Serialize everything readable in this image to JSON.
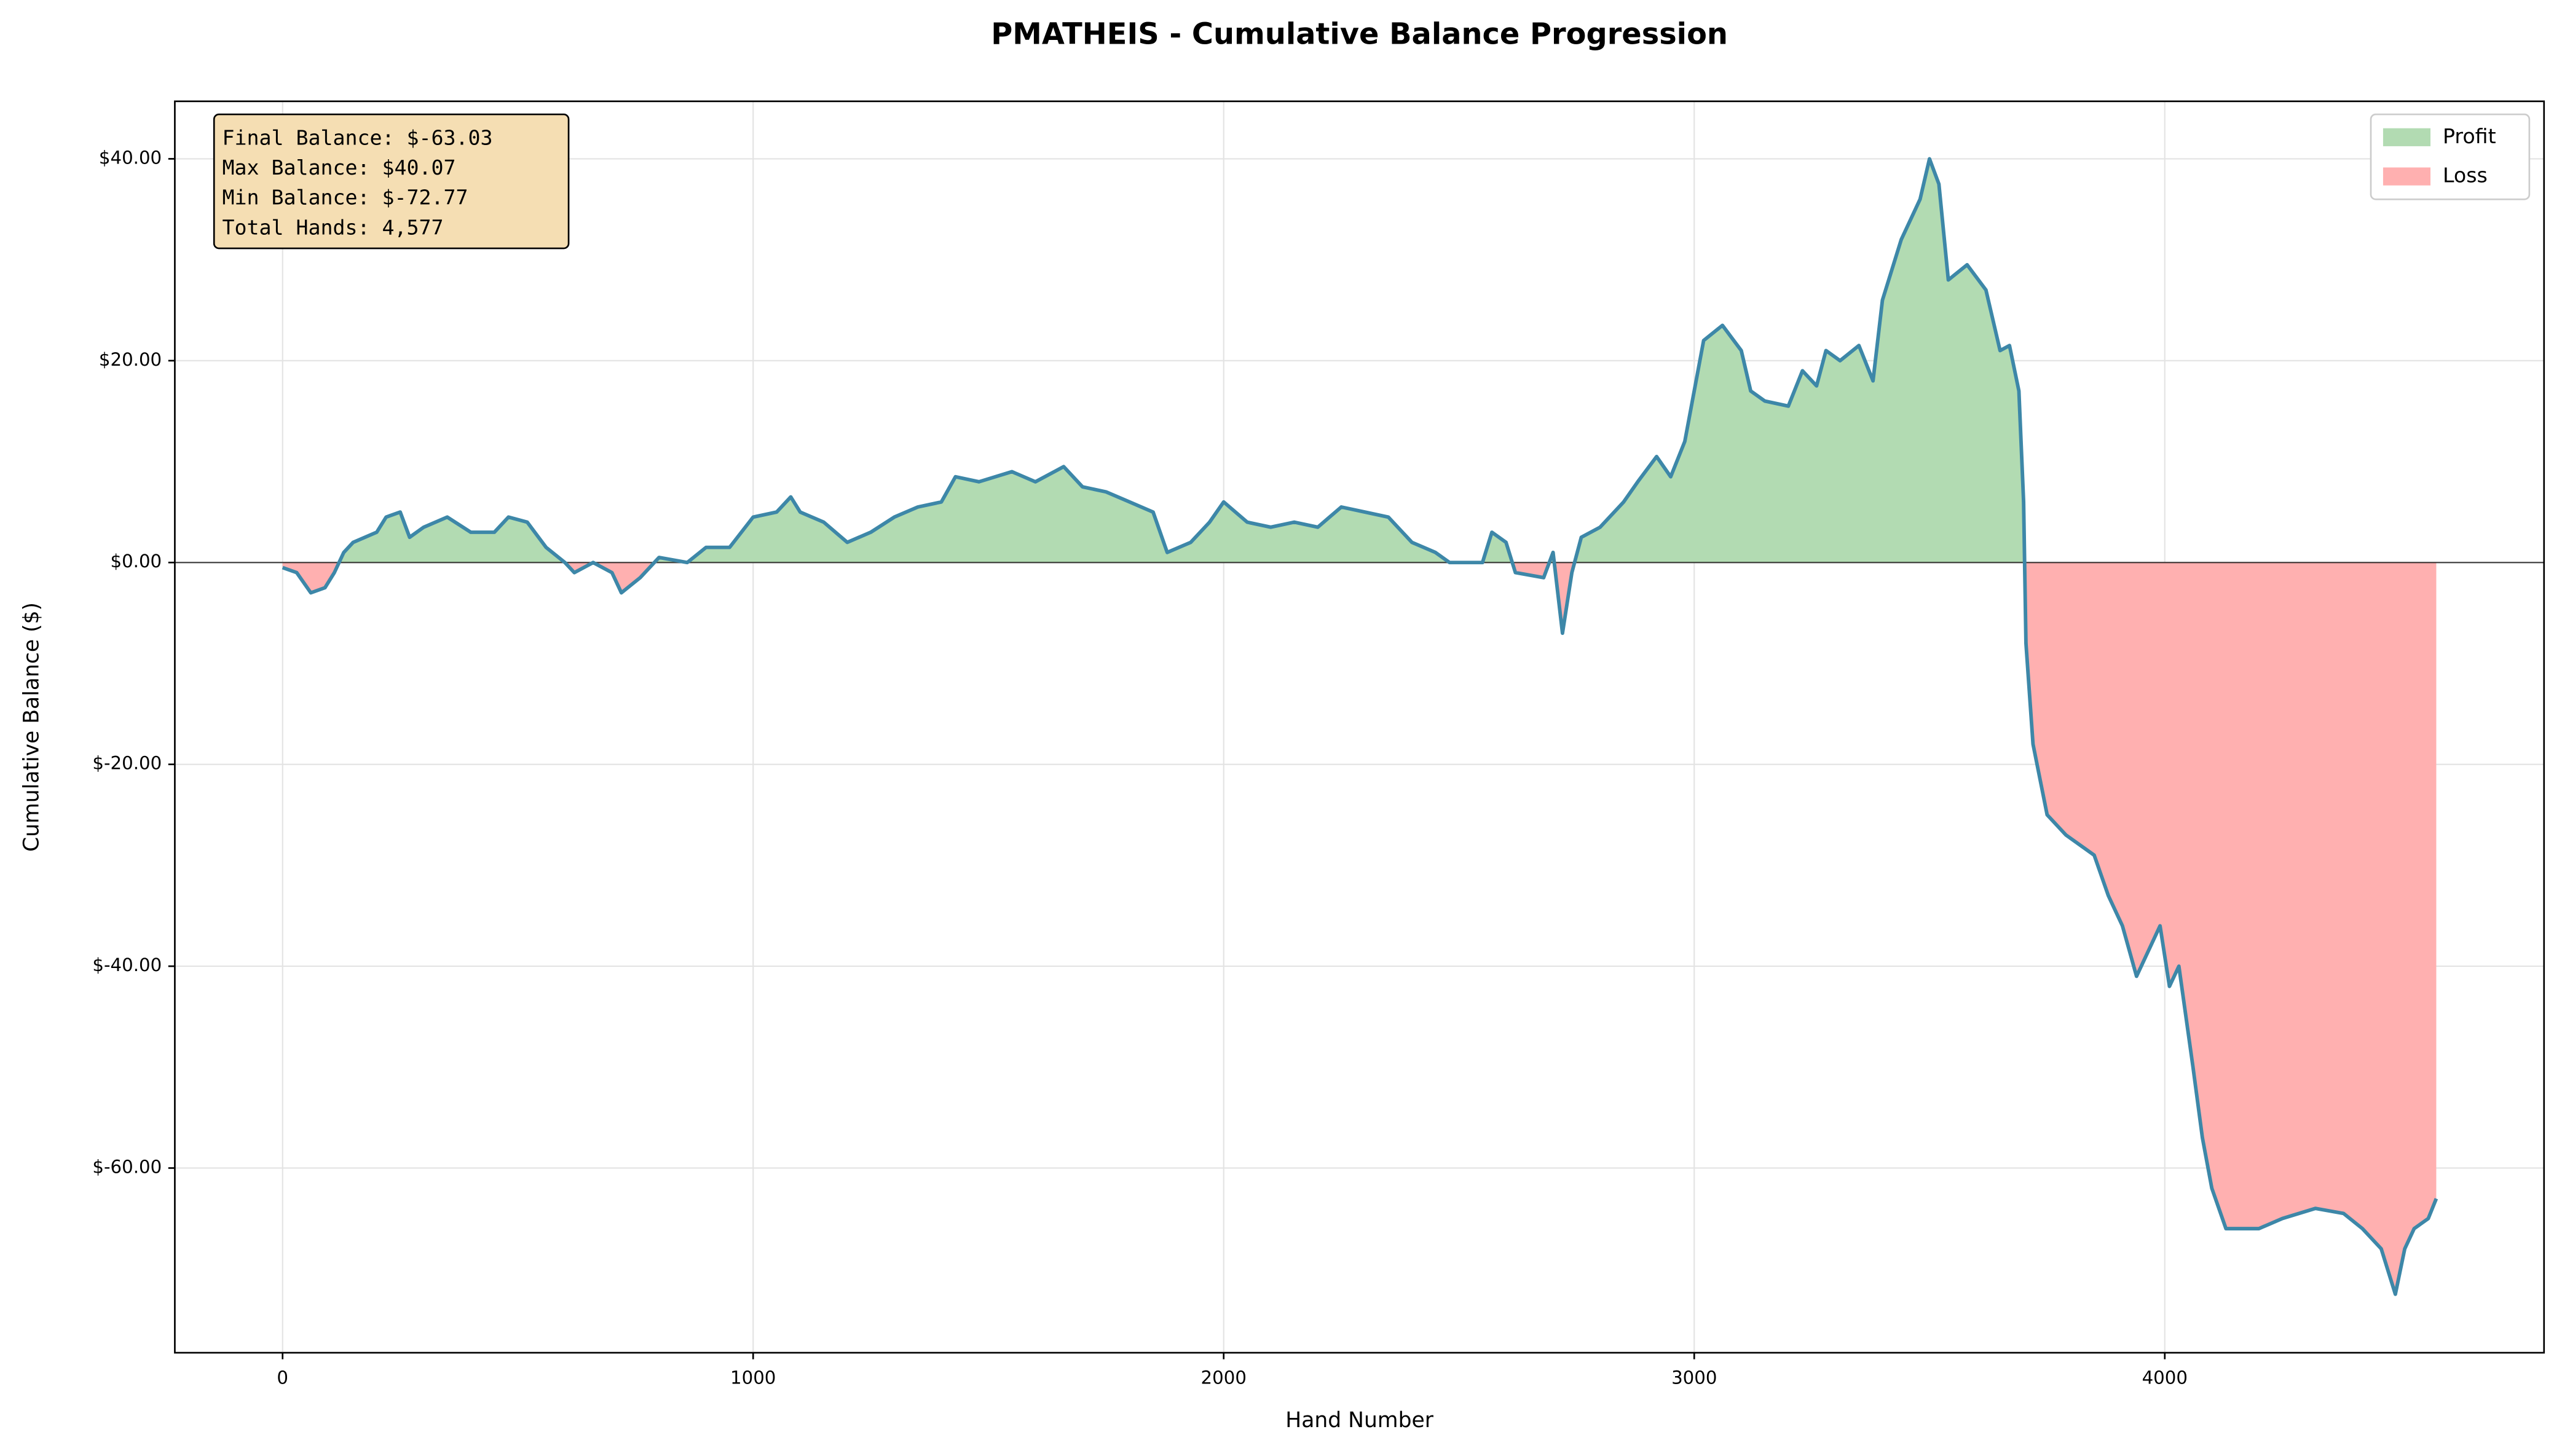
{
  "chart_data": {
    "type": "line",
    "title": "PMATHEIS - Cumulative Balance Progression",
    "xlabel": "Hand Number",
    "ylabel": "Cumulative Balance ($)",
    "annotation": [
      "Final Balance: $-63.03",
      "Max Balance: $40.07",
      "Min Balance: $-72.77",
      "Total Hands: 4,577"
    ],
    "line_color": "#3d87a8",
    "fills": [
      {
        "name": "Profit",
        "color": "#b2dbb2"
      },
      {
        "name": "Loss",
        "color": "#ffb0b0"
      }
    ],
    "legend": "upper right",
    "grid": true,
    "xlim": [
      -229,
      4806
    ],
    "ylim": [
      -78.3,
      45.7
    ],
    "xticks": [
      0,
      1000,
      2000,
      3000,
      4000
    ],
    "yticks": [
      {
        "value": 40,
        "label": "$40.00"
      },
      {
        "value": 20,
        "label": "$20.00"
      },
      {
        "value": 0,
        "label": "$0.00"
      },
      {
        "value": -20,
        "label": "$-20.00"
      },
      {
        "value": -40,
        "label": "$-40.00"
      },
      {
        "value": -60,
        "label": "$-60.00"
      }
    ],
    "x": [
      0,
      30,
      60,
      90,
      110,
      130,
      150,
      200,
      220,
      250,
      270,
      300,
      350,
      400,
      450,
      480,
      520,
      560,
      600,
      620,
      660,
      700,
      720,
      760,
      800,
      860,
      900,
      950,
      1000,
      1050,
      1080,
      1100,
      1150,
      1200,
      1250,
      1300,
      1350,
      1400,
      1430,
      1480,
      1550,
      1600,
      1660,
      1700,
      1750,
      1800,
      1850,
      1880,
      1930,
      1970,
      2000,
      2050,
      2100,
      2150,
      2200,
      2250,
      2300,
      2350,
      2400,
      2450,
      2480,
      2550,
      2570,
      2600,
      2620,
      2680,
      2700,
      2720,
      2740,
      2760,
      2800,
      2850,
      2880,
      2920,
      2950,
      2980,
      3000,
      3020,
      3060,
      3100,
      3120,
      3150,
      3200,
      3230,
      3260,
      3280,
      3310,
      3350,
      3380,
      3400,
      3440,
      3480,
      3500,
      3520,
      3540,
      3580,
      3620,
      3650,
      3670,
      3690,
      3700,
      3705,
      3720,
      3750,
      3790,
      3850,
      3880,
      3910,
      3940,
      3960,
      3990,
      4010,
      4030,
      4060,
      4080,
      4100,
      4130,
      4200,
      4250,
      4320,
      4380,
      4420,
      4460,
      4490,
      4510,
      4530,
      4560,
      4577
    ],
    "values": [
      -0.5,
      -1,
      -3,
      -2.5,
      -1,
      1,
      2,
      3,
      4.5,
      5,
      2.5,
      3.5,
      4.5,
      3,
      3,
      4.5,
      4,
      1.5,
      0,
      -1,
      0,
      -1,
      -3,
      -1.5,
      0.5,
      0,
      1.5,
      1.5,
      4.5,
      5,
      6.5,
      5,
      4,
      2,
      3,
      4.5,
      5.5,
      6,
      8.5,
      8,
      9,
      8,
      9.5,
      7.5,
      7,
      6,
      5,
      1,
      2,
      4,
      6,
      4,
      3.5,
      4,
      3.5,
      5.5,
      5,
      4.5,
      2,
      1,
      0,
      0,
      3,
      2,
      -1,
      -1.5,
      1,
      -7,
      -1,
      2.5,
      3.5,
      6,
      8,
      10.5,
      8.5,
      12,
      17,
      22,
      23.5,
      21,
      17,
      16,
      15.5,
      19,
      17.5,
      21,
      20,
      21.5,
      18,
      26,
      32,
      36,
      40,
      37.5,
      28,
      29.5,
      27,
      21,
      21.5,
      17,
      6,
      -8,
      -18,
      -25,
      -27,
      -29,
      -33,
      -36,
      -41,
      -39,
      -36,
      -42,
      -40,
      -50,
      -57,
      -62,
      -66,
      -66,
      -65,
      -64,
      -64.5,
      -66,
      -68,
      -72.5,
      -68,
      -66,
      -65,
      -63.03
    ]
  }
}
